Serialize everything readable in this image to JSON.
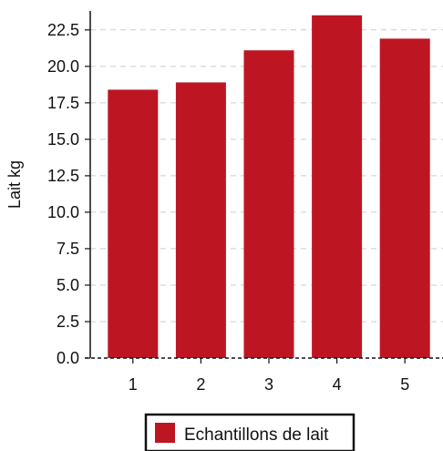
{
  "chart_data": {
    "type": "bar",
    "categories": [
      "1",
      "2",
      "3",
      "4",
      "5"
    ],
    "series": [
      {
        "name": "Echantillons de lait",
        "values": [
          18.4,
          18.9,
          21.1,
          23.5,
          21.9
        ],
        "color": "#bd1622"
      }
    ],
    "title": "",
    "xlabel": "",
    "ylabel": "Lait kg",
    "ylim": [
      0,
      23.8
    ],
    "yticks": [
      "0.0",
      "2.5",
      "5.0",
      "7.5",
      "10.0",
      "12.5",
      "15.0",
      "17.5",
      "20.0",
      "22.5"
    ],
    "grid": true,
    "legend": {
      "position": "bottom-center",
      "label": "Echantillons de lait"
    }
  }
}
